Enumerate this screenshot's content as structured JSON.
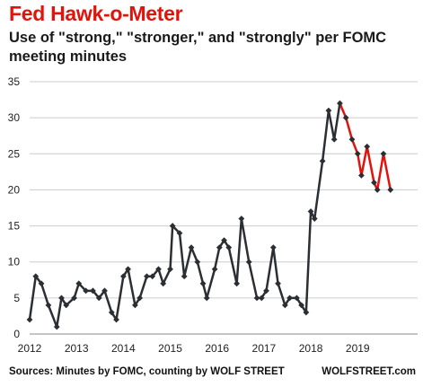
{
  "header": {
    "title": "Fed Hawk-o-Meter",
    "subtitle": "Use of \"strong,\" \"stronger,\" and \"strongly\" per FOMC meeting minutes"
  },
  "footer": {
    "source": "Sources: Minutes by FOMC, counting by WOLF STREET",
    "brand": "WOLFSTREET.com"
  },
  "chart_data": {
    "type": "line",
    "title": "Fed Hawk-o-Meter",
    "subtitle": "Use of \"strong,\" \"stronger,\" and \"strongly\" per FOMC meeting minutes",
    "xlabel": "",
    "ylabel": "",
    "ylim": [
      0,
      35
    ],
    "yticks": [
      0,
      5,
      10,
      15,
      20,
      25,
      30,
      35
    ],
    "xlim": [
      2012.0,
      2019.8
    ],
    "xticks": [
      2012,
      2013,
      2014,
      2015,
      2016,
      2017,
      2018,
      2019
    ],
    "xtick_labels": [
      "2012",
      "2013",
      "2014",
      "2015",
      "2016",
      "2017",
      "2018",
      "2019"
    ],
    "grid": "horizontal",
    "colors": {
      "base": "#2b2f33",
      "highlight": "#e3120b",
      "grid": "#cccccc"
    },
    "highlight_from_index": 53,
    "points": [
      [
        2012.0,
        2
      ],
      [
        2012.13,
        8
      ],
      [
        2012.25,
        7
      ],
      [
        2012.4,
        4
      ],
      [
        2012.58,
        1
      ],
      [
        2012.68,
        5
      ],
      [
        2012.78,
        4
      ],
      [
        2012.95,
        5
      ],
      [
        2013.05,
        7
      ],
      [
        2013.2,
        6
      ],
      [
        2013.35,
        6
      ],
      [
        2013.48,
        5
      ],
      [
        2013.6,
        6
      ],
      [
        2013.75,
        3
      ],
      [
        2013.85,
        2
      ],
      [
        2014.0,
        8
      ],
      [
        2014.1,
        9
      ],
      [
        2014.25,
        4
      ],
      [
        2014.35,
        5
      ],
      [
        2014.5,
        8
      ],
      [
        2014.62,
        8
      ],
      [
        2014.75,
        9
      ],
      [
        2014.85,
        7
      ],
      [
        2015.0,
        9
      ],
      [
        2015.05,
        15
      ],
      [
        2015.2,
        14
      ],
      [
        2015.3,
        8
      ],
      [
        2015.45,
        12
      ],
      [
        2015.58,
        10
      ],
      [
        2015.7,
        7
      ],
      [
        2015.78,
        5
      ],
      [
        2015.95,
        9
      ],
      [
        2016.05,
        12
      ],
      [
        2016.15,
        13
      ],
      [
        2016.25,
        12
      ],
      [
        2016.42,
        7
      ],
      [
        2016.52,
        16
      ],
      [
        2016.68,
        10
      ],
      [
        2016.85,
        5
      ],
      [
        2016.95,
        5
      ],
      [
        2017.05,
        6
      ],
      [
        2017.2,
        12
      ],
      [
        2017.3,
        7
      ],
      [
        2017.45,
        4
      ],
      [
        2017.55,
        5
      ],
      [
        2017.7,
        5
      ],
      [
        2017.8,
        4
      ],
      [
        2017.9,
        3
      ],
      [
        2018.0,
        17
      ],
      [
        2018.08,
        16
      ],
      [
        2018.25,
        24
      ],
      [
        2018.38,
        31
      ],
      [
        2018.5,
        27
      ],
      [
        2018.62,
        32
      ],
      [
        2018.75,
        30
      ],
      [
        2018.88,
        27
      ],
      [
        2019.0,
        25
      ],
      [
        2019.08,
        22
      ],
      [
        2019.2,
        26
      ],
      [
        2019.35,
        21
      ],
      [
        2019.42,
        20
      ],
      [
        2019.55,
        25
      ],
      [
        2019.7,
        20
      ]
    ]
  }
}
